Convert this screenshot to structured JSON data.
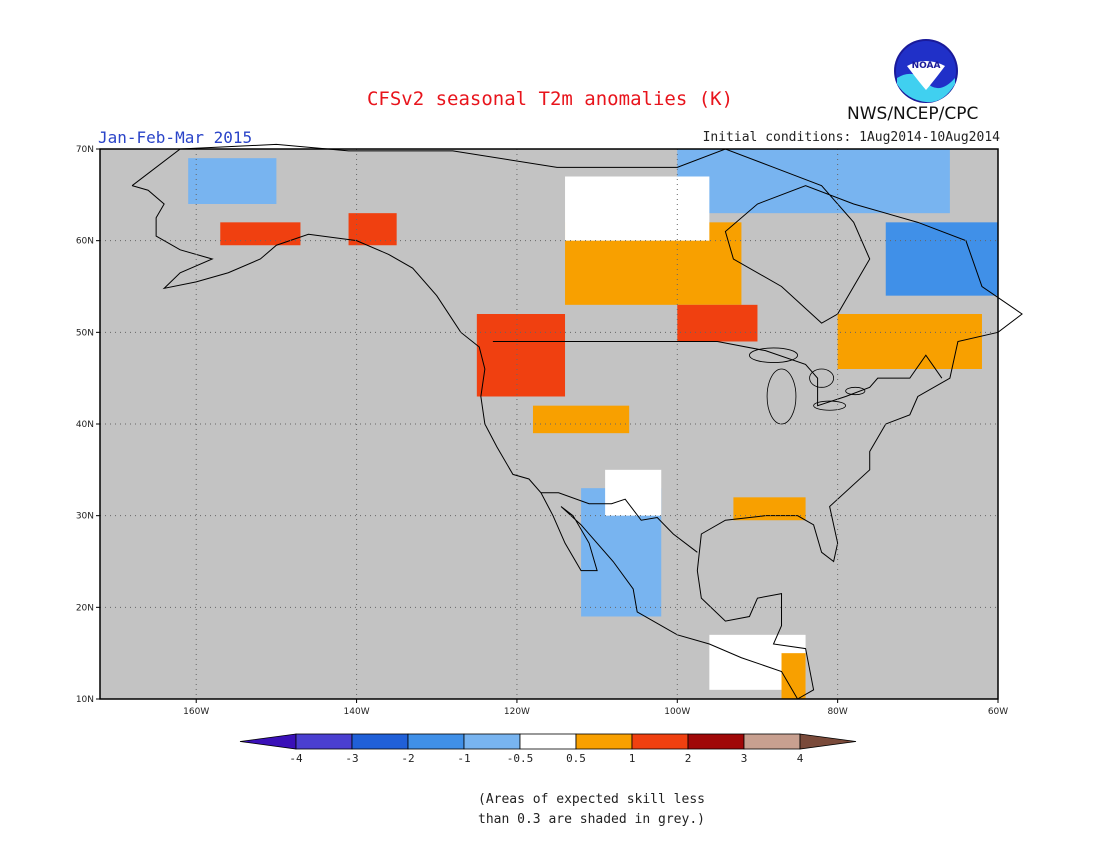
{
  "title": "CFSv2 seasonal T2m anomalies (K)",
  "period": "Jan-Feb-Mar 2015",
  "initial_conditions": "Initial conditions: 1Aug2014-10Aug2014",
  "agency": "NWS/NCEP/CPC",
  "logo_text": "NOAA",
  "map": {
    "lon_range": [
      -172,
      -60
    ],
    "lat_range": [
      10,
      70
    ],
    "lon_ticks": [
      "160W",
      "140W",
      "120W",
      "100W",
      "80W",
      "60W"
    ],
    "lat_ticks": [
      "70N",
      "60N",
      "50N",
      "40N",
      "30N",
      "20N",
      "10N"
    ],
    "background": "grey = skill below 0.3",
    "grid": true
  },
  "colorbar": {
    "labels": [
      "-4",
      "-3",
      "-2",
      "-1",
      "-0.5",
      "0.5",
      "1",
      "2",
      "3",
      "4"
    ],
    "colors": [
      "#3a10b8",
      "#4a3fd0",
      "#2060d8",
      "#4090e8",
      "#78b4f0",
      "#ffffff",
      "#f8a000",
      "#f04010",
      "#a00808",
      "#c8a090",
      "#7a4a3a"
    ]
  },
  "note_line1": "(Areas of expected skill less",
  "note_line2": "than 0.3 are shaded in grey.)",
  "anomaly_regions": [
    {
      "name": "alaska-north",
      "category": "-1",
      "color": "#78b4f0",
      "lon": [
        -161,
        -150
      ],
      "lat": [
        64,
        69
      ]
    },
    {
      "name": "alaska-south-coast",
      "category": "1",
      "color": "#f04010",
      "lon": [
        -157,
        -147
      ],
      "lat": [
        59.5,
        62
      ]
    },
    {
      "name": "yukon",
      "category": "1",
      "color": "#f04010",
      "lon": [
        -141,
        -135
      ],
      "lat": [
        59.5,
        63
      ]
    },
    {
      "name": "pacific-northwest",
      "category": "1",
      "color": "#f04010",
      "lon": [
        -125,
        -114
      ],
      "lat": [
        43,
        52
      ]
    },
    {
      "name": "great-basin",
      "category": "0.5",
      "color": "#f8a000",
      "lon": [
        -118,
        -106
      ],
      "lat": [
        39,
        42
      ]
    },
    {
      "name": "mexico-north",
      "category": "-1",
      "color": "#78b4f0",
      "lon": [
        -112,
        -102
      ],
      "lat": [
        19,
        33
      ]
    },
    {
      "name": "texas-west",
      "category": "-0.5",
      "color": "#ffffff",
      "lon": [
        -109,
        -102
      ],
      "lat": [
        30,
        35
      ]
    },
    {
      "name": "gulf-coast",
      "category": "0.5",
      "color": "#f8a000",
      "lon": [
        -93,
        -84
      ],
      "lat": [
        29.5,
        32
      ]
    },
    {
      "name": "hudson-bay-west",
      "category": "0.5",
      "color": "#f8a000",
      "lon": [
        -114,
        -92
      ],
      "lat": [
        53,
        62
      ]
    },
    {
      "name": "ontario",
      "category": "1",
      "color": "#f04010",
      "lon": [
        -100,
        -90
      ],
      "lat": [
        49,
        53
      ]
    },
    {
      "name": "quebec-south",
      "category": "0.5",
      "color": "#f8a000",
      "lon": [
        -80,
        -62
      ],
      "lat": [
        46,
        52
      ]
    },
    {
      "name": "labrador",
      "category": "-1",
      "color": "#4090e8",
      "lon": [
        -74,
        -60
      ],
      "lat": [
        54,
        62
      ]
    },
    {
      "name": "baffin",
      "category": "-1",
      "color": "#78b4f0",
      "lon": [
        -100,
        -66
      ],
      "lat": [
        63,
        70
      ]
    },
    {
      "name": "canada-north-white",
      "category": "-0.5",
      "color": "#ffffff",
      "lon": [
        -114,
        -96
      ],
      "lat": [
        60,
        67
      ]
    },
    {
      "name": "central-america",
      "category": "-0.5",
      "color": "#ffffff",
      "lon": [
        -96,
        -84
      ],
      "lat": [
        11,
        17
      ]
    },
    {
      "name": "honduras",
      "category": "0.5",
      "color": "#f8a000",
      "lon": [
        -87,
        -84
      ],
      "lat": [
        10,
        15
      ]
    }
  ]
}
